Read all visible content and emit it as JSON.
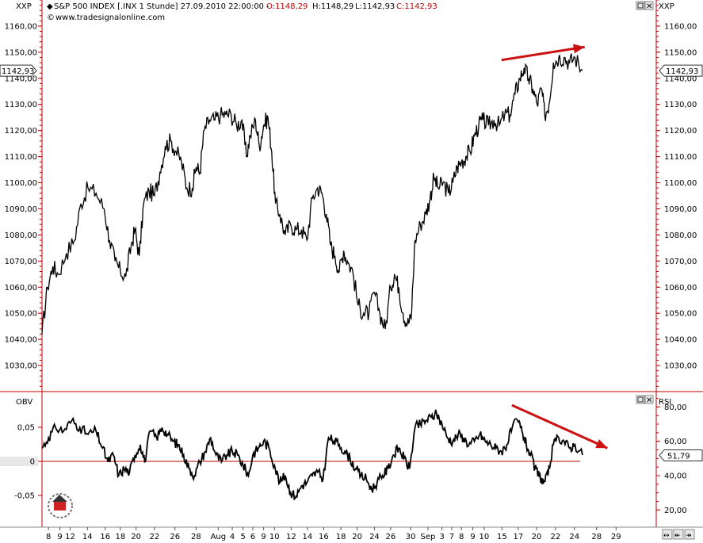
{
  "header": {
    "symbol_left": "XXP",
    "symbol_right": "XXP",
    "instrument": "S&P 500 INDEX [.INX  1 Stunde] 27.09.2010 22:00:00 -",
    "ohlc": {
      "o": "O:1148,29",
      "h": "H:1148,29",
      "l": "L:1142,93",
      "c": "C:1142,93"
    },
    "website": "www.tradesignalonline.com"
  },
  "price_panel": {
    "last_value": "1142,93",
    "y_min": 1020,
    "y_max": 1170,
    "ticks": [
      "1030,00",
      "1040,00",
      "1050,00",
      "1060,00",
      "1070,00",
      "1080,00",
      "1090,00",
      "1100,00",
      "1110,00",
      "1120,00",
      "1130,00",
      "1140,00",
      "1150,00",
      "1160,00"
    ],
    "tick_values": [
      1030,
      1040,
      1050,
      1060,
      1070,
      1080,
      1090,
      1100,
      1110,
      1120,
      1130,
      1140,
      1150,
      1160
    ],
    "last": 1142.93,
    "trend_arrow": {
      "from": [
        0.85,
        1147
      ],
      "to": [
        0.96,
        1152
      ],
      "color": "#cc1111"
    }
  },
  "indicator_panel": {
    "left_label": "OBV",
    "right_label": "RSI",
    "left_ticks": [
      "0,05",
      "0",
      "-0,05"
    ],
    "left_tick_values": [
      0.05,
      0,
      -0.05
    ],
    "right_ticks": [
      "80,00",
      "60,00",
      "40,00",
      "20,00"
    ],
    "right_tick_values": [
      80,
      60,
      40,
      20
    ],
    "rsi_last_label": "51,79",
    "rsi_last": 51.79,
    "rsi_min": 10,
    "rsi_max": 88,
    "trend_arrow": {
      "from": [
        0.84,
        81
      ],
      "to": [
        0.98,
        56
      ],
      "color": "#cc1111"
    }
  },
  "x_axis": {
    "labels": [
      "8",
      "9",
      "12",
      "14",
      "16",
      "18",
      "20",
      "22",
      "26",
      "28",
      "Aug",
      "4",
      "5",
      "6",
      "9",
      "10",
      "12",
      "14",
      "16",
      "18",
      "20",
      "24",
      "26",
      "30",
      "Sep",
      "3",
      "7",
      "8",
      "9",
      "10",
      "15",
      "17",
      "20",
      "22",
      "24",
      "28",
      "29"
    ],
    "positions": [
      0.012,
      0.033,
      0.052,
      0.084,
      0.117,
      0.145,
      0.174,
      0.208,
      0.246,
      0.285,
      0.326,
      0.352,
      0.372,
      0.39,
      0.41,
      0.43,
      0.461,
      0.491,
      0.521,
      0.553,
      0.583,
      0.615,
      0.645,
      0.682,
      0.714,
      0.74,
      0.758,
      0.776,
      0.797,
      0.818,
      0.851,
      0.881,
      0.915,
      0.95,
      0.985,
      1.026,
      1.062
    ]
  },
  "chart_data": {
    "type": "line",
    "title": "S&P 500 INDEX [.INX  1 Stunde] 27.09.2010 22:00:00",
    "price_anchors": [
      [
        0.0,
        1042
      ],
      [
        0.01,
        1060
      ],
      [
        0.02,
        1068
      ],
      [
        0.03,
        1065
      ],
      [
        0.045,
        1073
      ],
      [
        0.06,
        1078
      ],
      [
        0.072,
        1092
      ],
      [
        0.085,
        1098
      ],
      [
        0.1,
        1096
      ],
      [
        0.115,
        1090
      ],
      [
        0.125,
        1078
      ],
      [
        0.135,
        1070
      ],
      [
        0.145,
        1066
      ],
      [
        0.155,
        1064
      ],
      [
        0.165,
        1076
      ],
      [
        0.172,
        1082
      ],
      [
        0.18,
        1072
      ],
      [
        0.188,
        1092
      ],
      [
        0.198,
        1097
      ],
      [
        0.208,
        1095
      ],
      [
        0.218,
        1104
      ],
      [
        0.228,
        1114
      ],
      [
        0.238,
        1116
      ],
      [
        0.248,
        1112
      ],
      [
        0.258,
        1108
      ],
      [
        0.268,
        1098
      ],
      [
        0.278,
        1098
      ],
      [
        0.285,
        1106
      ],
      [
        0.292,
        1104
      ],
      [
        0.3,
        1120
      ],
      [
        0.31,
        1124
      ],
      [
        0.32,
        1124
      ],
      [
        0.33,
        1126
      ],
      [
        0.34,
        1126
      ],
      [
        0.35,
        1126
      ],
      [
        0.36,
        1122
      ],
      [
        0.37,
        1124
      ],
      [
        0.378,
        1110
      ],
      [
        0.385,
        1118
      ],
      [
        0.395,
        1124
      ],
      [
        0.402,
        1114
      ],
      [
        0.41,
        1122
      ],
      [
        0.418,
        1125
      ],
      [
        0.425,
        1112
      ],
      [
        0.432,
        1092
      ],
      [
        0.44,
        1088
      ],
      [
        0.45,
        1080
      ],
      [
        0.46,
        1084
      ],
      [
        0.47,
        1082
      ],
      [
        0.48,
        1082
      ],
      [
        0.49,
        1078
      ],
      [
        0.5,
        1094
      ],
      [
        0.51,
        1098
      ],
      [
        0.518,
        1096
      ],
      [
        0.526,
        1088
      ],
      [
        0.534,
        1076
      ],
      [
        0.542,
        1072
      ],
      [
        0.55,
        1066
      ],
      [
        0.558,
        1074
      ],
      [
        0.565,
        1070
      ],
      [
        0.575,
        1066
      ],
      [
        0.585,
        1053
      ],
      [
        0.595,
        1050
      ],
      [
        0.605,
        1050
      ],
      [
        0.615,
        1058
      ],
      [
        0.625,
        1050
      ],
      [
        0.635,
        1044
      ],
      [
        0.645,
        1060
      ],
      [
        0.652,
        1065
      ],
      [
        0.66,
        1060
      ],
      [
        0.668,
        1050
      ],
      [
        0.676,
        1046
      ],
      [
        0.683,
        1048
      ],
      [
        0.69,
        1078
      ],
      [
        0.7,
        1084
      ],
      [
        0.71,
        1088
      ],
      [
        0.718,
        1094
      ],
      [
        0.725,
        1102
      ],
      [
        0.733,
        1098
      ],
      [
        0.742,
        1100
      ],
      [
        0.752,
        1096
      ],
      [
        0.76,
        1100
      ],
      [
        0.768,
        1106
      ],
      [
        0.776,
        1108
      ],
      [
        0.784,
        1110
      ],
      [
        0.792,
        1112
      ],
      [
        0.8,
        1118
      ],
      [
        0.808,
        1122
      ],
      [
        0.816,
        1124
      ],
      [
        0.826,
        1122
      ],
      [
        0.836,
        1124
      ],
      [
        0.846,
        1122
      ],
      [
        0.856,
        1126
      ],
      [
        0.866,
        1126
      ],
      [
        0.875,
        1134
      ],
      [
        0.884,
        1140
      ],
      [
        0.892,
        1144
      ],
      [
        0.9,
        1140
      ],
      [
        0.908,
        1136
      ],
      [
        0.916,
        1130
      ],
      [
        0.924,
        1136
      ],
      [
        0.93,
        1126
      ],
      [
        0.938,
        1130
      ],
      [
        0.946,
        1146
      ],
      [
        0.956,
        1148
      ],
      [
        0.966,
        1148
      ],
      [
        0.976,
        1146
      ],
      [
        0.986,
        1148
      ],
      [
        1.0,
        1143
      ]
    ],
    "rsi_anchors": [
      [
        0.0,
        56
      ],
      [
        0.012,
        62
      ],
      [
        0.025,
        68
      ],
      [
        0.04,
        66
      ],
      [
        0.055,
        72
      ],
      [
        0.07,
        68
      ],
      [
        0.085,
        64
      ],
      [
        0.1,
        66
      ],
      [
        0.112,
        56
      ],
      [
        0.122,
        48
      ],
      [
        0.132,
        52
      ],
      [
        0.142,
        40
      ],
      [
        0.152,
        44
      ],
      [
        0.162,
        42
      ],
      [
        0.172,
        52
      ],
      [
        0.182,
        58
      ],
      [
        0.19,
        48
      ],
      [
        0.2,
        66
      ],
      [
        0.212,
        62
      ],
      [
        0.222,
        68
      ],
      [
        0.232,
        64
      ],
      [
        0.242,
        60
      ],
      [
        0.252,
        58
      ],
      [
        0.262,
        52
      ],
      [
        0.272,
        44
      ],
      [
        0.282,
        40
      ],
      [
        0.292,
        48
      ],
      [
        0.302,
        54
      ],
      [
        0.312,
        62
      ],
      [
        0.322,
        52
      ],
      [
        0.332,
        48
      ],
      [
        0.342,
        52
      ],
      [
        0.352,
        54
      ],
      [
        0.362,
        52
      ],
      [
        0.372,
        46
      ],
      [
        0.382,
        40
      ],
      [
        0.39,
        52
      ],
      [
        0.4,
        56
      ],
      [
        0.41,
        60
      ],
      [
        0.42,
        56
      ],
      [
        0.43,
        46
      ],
      [
        0.44,
        36
      ],
      [
        0.45,
        40
      ],
      [
        0.46,
        30
      ],
      [
        0.47,
        28
      ],
      [
        0.48,
        34
      ],
      [
        0.49,
        36
      ],
      [
        0.5,
        40
      ],
      [
        0.51,
        42
      ],
      [
        0.52,
        38
      ],
      [
        0.53,
        62
      ],
      [
        0.54,
        60
      ],
      [
        0.55,
        58
      ],
      [
        0.56,
        54
      ],
      [
        0.57,
        50
      ],
      [
        0.58,
        44
      ],
      [
        0.59,
        40
      ],
      [
        0.6,
        38
      ],
      [
        0.61,
        32
      ],
      [
        0.62,
        36
      ],
      [
        0.63,
        40
      ],
      [
        0.64,
        44
      ],
      [
        0.65,
        52
      ],
      [
        0.66,
        56
      ],
      [
        0.67,
        50
      ],
      [
        0.68,
        44
      ],
      [
        0.69,
        68
      ],
      [
        0.7,
        70
      ],
      [
        0.71,
        72
      ],
      [
        0.72,
        74
      ],
      [
        0.73,
        76
      ],
      [
        0.74,
        70
      ],
      [
        0.75,
        62
      ],
      [
        0.76,
        60
      ],
      [
        0.77,
        64
      ],
      [
        0.78,
        62
      ],
      [
        0.79,
        58
      ],
      [
        0.8,
        60
      ],
      [
        0.81,
        64
      ],
      [
        0.82,
        60
      ],
      [
        0.83,
        58
      ],
      [
        0.84,
        56
      ],
      [
        0.85,
        54
      ],
      [
        0.86,
        58
      ],
      [
        0.87,
        68
      ],
      [
        0.88,
        72
      ],
      [
        0.888,
        66
      ],
      [
        0.896,
        58
      ],
      [
        0.904,
        52
      ],
      [
        0.912,
        44
      ],
      [
        0.92,
        40
      ],
      [
        0.928,
        36
      ],
      [
        0.936,
        40
      ],
      [
        0.946,
        58
      ],
      [
        0.956,
        62
      ],
      [
        0.966,
        60
      ],
      [
        0.976,
        56
      ],
      [
        0.986,
        58
      ],
      [
        1.0,
        52
      ]
    ]
  }
}
